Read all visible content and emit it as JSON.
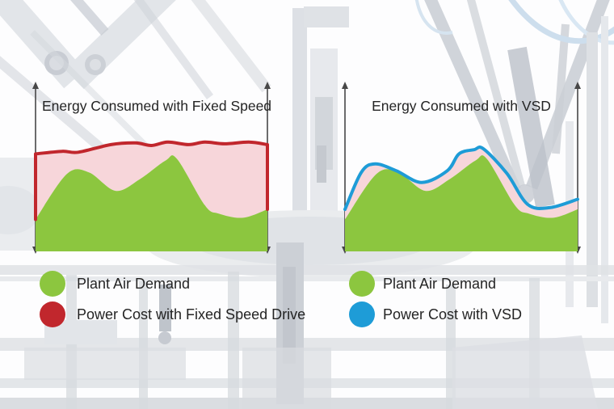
{
  "page": {
    "background": "washed-out photo of industrial robotic assembly machinery",
    "accent_colors": {
      "plant_air_green": "#8cc63f",
      "fixed_speed_red": "#c1272d",
      "vsd_blue": "#1e9cd7",
      "band_pink": "#f7d6da",
      "axis_gray": "#474747",
      "text": "#242424"
    }
  },
  "chart_data": [
    {
      "type": "area",
      "title": "Energy Consumed with Fixed Speed",
      "xlabel": "",
      "ylabel": "",
      "x_range": [
        0,
        100
      ],
      "y_range_percent_of_axis": [
        0,
        100
      ],
      "axes_note": "unlabeled vertical double-arrow axes on both sides, no ticks, no gridlines",
      "series": [
        {
          "name": "Plant Air Demand",
          "kind": "area",
          "color": "#8cc63f",
          "x": [
            0,
            13.5,
            23,
            34.5,
            45,
            56,
            61,
            73,
            79,
            89.5,
            100
          ],
          "values": [
            19,
            46,
            47,
            36,
            43,
            54,
            55,
            27.5,
            22.5,
            20,
            25
          ]
        },
        {
          "name": "Power Cost with Fixed Speed Drive",
          "kind": "line",
          "color": "#c1272d",
          "band_fill": "#f7d6da",
          "band_to": "Plant Air Demand",
          "drop_to_demand_at_edges": true,
          "x": [
            0,
            11.5,
            18.5,
            32.5,
            43,
            50,
            57,
            66,
            73,
            81.5,
            92,
            100
          ],
          "values": [
            58,
            59.5,
            59,
            63.5,
            64.5,
            63,
            65,
            63.5,
            65,
            64,
            65,
            63.5
          ]
        }
      ],
      "legend": [
        {
          "label": "Plant Air Demand",
          "color": "#8cc63f"
        },
        {
          "label": "Power Cost with Fixed Speed Drive",
          "color": "#c1272d"
        }
      ],
      "legend_position": "below-left"
    },
    {
      "type": "area",
      "title": "Energy Consumed with VSD",
      "xlabel": "",
      "ylabel": "",
      "x_range": [
        0,
        100
      ],
      "y_range_percent_of_axis": [
        0,
        100
      ],
      "axes_note": "unlabeled vertical double-arrow axes on both sides, no ticks, no gridlines",
      "series": [
        {
          "name": "Plant Air Demand",
          "kind": "area",
          "color": "#8cc63f",
          "x": [
            0,
            13.5,
            23,
            34.5,
            45,
            56,
            61,
            73,
            79,
            89.5,
            100
          ],
          "values": [
            19,
            46,
            47,
            36,
            43,
            54,
            55,
            27.5,
            22.5,
            20,
            25
          ]
        },
        {
          "name": "Power Cost with VSD",
          "kind": "line",
          "color": "#1e9cd7",
          "band_fill": "#f7d6da",
          "band_to": "Plant Air Demand",
          "drop_to_demand_at_edges": false,
          "x": [
            0,
            7,
            13,
            22,
            33,
            44,
            49,
            55.5,
            59.5,
            69.5,
            78.5,
            88,
            100
          ],
          "values": [
            25,
            47,
            52,
            48,
            41,
            48,
            58,
            60.5,
            61,
            46.5,
            28,
            26,
            31
          ]
        }
      ],
      "legend": [
        {
          "label": "Plant Air Demand",
          "color": "#8cc63f"
        },
        {
          "label": "Power Cost with VSD",
          "color": "#1e9cd7"
        }
      ],
      "legend_position": "below-left"
    }
  ]
}
